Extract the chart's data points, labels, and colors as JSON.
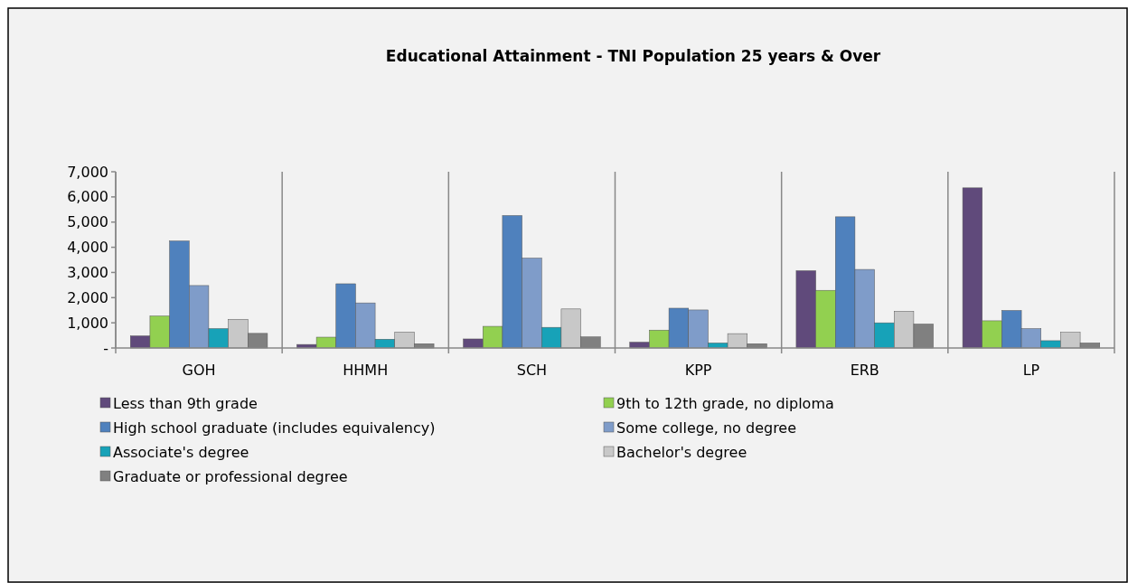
{
  "chart_data": {
    "type": "bar",
    "title": "Educational Attainment - TNI Population 25 years & Over",
    "categories": [
      "GOH",
      "HHMH",
      "SCH",
      "KPP",
      "ERB",
      "LP"
    ],
    "series": [
      {
        "name": "Less than 9th grade",
        "color": "#604a7b",
        "values": [
          480,
          140,
          360,
          230,
          3070,
          6360
        ]
      },
      {
        "name": "9th to 12th grade, no diploma",
        "color": "#92d050",
        "values": [
          1270,
          430,
          860,
          710,
          2290,
          1080
        ]
      },
      {
        "name": "High school graduate (includes equivalency)",
        "color": "#4f81bd",
        "values": [
          4250,
          2550,
          5260,
          1580,
          5210,
          1490
        ]
      },
      {
        "name": "Some college, no degree",
        "color": "#7f9cc9",
        "values": [
          2480,
          1790,
          3570,
          1510,
          3120,
          770
        ]
      },
      {
        "name": "Associate's degree",
        "color": "#17a2b8",
        "values": [
          770,
          350,
          820,
          200,
          1000,
          290
        ]
      },
      {
        "name": "Bachelor's degree",
        "color": "#c8c8c8",
        "values": [
          1140,
          630,
          1550,
          570,
          1460,
          620
        ]
      },
      {
        "name": "Graduate or professional degree",
        "color": "#808080",
        "values": [
          580,
          170,
          440,
          170,
          950,
          200
        ]
      }
    ],
    "ylim": [
      0,
      7000
    ],
    "yticks": [
      {
        "value": 0,
        "label": "-"
      },
      {
        "value": 1000,
        "label": "1,000"
      },
      {
        "value": 2000,
        "label": "2,000"
      },
      {
        "value": 3000,
        "label": "3,000"
      },
      {
        "value": 4000,
        "label": "4,000"
      },
      {
        "value": 5000,
        "label": "5,000"
      },
      {
        "value": 6000,
        "label": "6,000"
      },
      {
        "value": 7000,
        "label": "7,000"
      }
    ],
    "grid": "x",
    "legend": "bottom"
  }
}
